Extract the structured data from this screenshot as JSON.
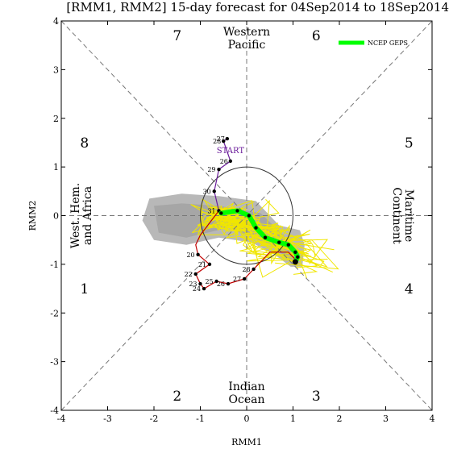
{
  "chart_data": {
    "type": "line",
    "title": "[RMM1, RMM2] 15-day forecast for 04Sep2014 to 18Sep2014",
    "xlabel": "RMM1",
    "ylabel": "RMM2",
    "xlim": [
      -4,
      4
    ],
    "ylim": [
      -4,
      4
    ],
    "xticks": [
      "-4",
      "-3",
      "-2",
      "-1",
      "0",
      "1",
      "2",
      "3",
      "4"
    ],
    "yticks": [
      "-4",
      "-3",
      "-2",
      "-1",
      "0",
      "1",
      "2",
      "3",
      "4"
    ],
    "grid": false,
    "legend": {
      "position": "top-right",
      "entries": [
        {
          "name": "NCEP GEPS",
          "color": "#00ff00"
        }
      ]
    },
    "phase_numbers": [
      "1",
      "2",
      "3",
      "4",
      "5",
      "6",
      "7",
      "8"
    ],
    "region_labels": {
      "top": [
        "Western",
        "Pacific"
      ],
      "bottom": [
        "Indian",
        "Ocean"
      ],
      "left": [
        "West. Hem.",
        "and Africa"
      ],
      "right": [
        "Maritime",
        "Continent"
      ]
    },
    "start_label": "START",
    "unit_circle_radius": 1,
    "observed": {
      "color": "#c00000",
      "recent_color": "#6a1b9a",
      "points": [
        {
          "label": "20",
          "x": -1.05,
          "y": -0.8
        },
        {
          "label": "21",
          "x": -0.8,
          "y": -1.0
        },
        {
          "label": "22",
          "x": -1.1,
          "y": -1.2
        },
        {
          "label": "23",
          "x": -1.0,
          "y": -1.4
        },
        {
          "label": "24",
          "x": -0.92,
          "y": -1.5
        },
        {
          "label": "25",
          "x": -0.65,
          "y": -1.35
        },
        {
          "label": "26",
          "x": -0.4,
          "y": -1.4
        },
        {
          "label": "27",
          "x": -0.05,
          "y": -1.3
        },
        {
          "label": "28",
          "x": 0.15,
          "y": -1.1
        },
        {
          "label": "29",
          "x": -0.6,
          "y": 0.95
        },
        {
          "label": "30",
          "x": -0.7,
          "y": 0.5
        },
        {
          "label": "31",
          "x": -0.6,
          "y": 0.1
        }
      ]
    },
    "start_points": [
      {
        "label": "27",
        "x": -0.42,
        "y": 1.58
      },
      {
        "label": "28",
        "x": -0.5,
        "y": 1.53
      },
      {
        "label": "26",
        "x": -0.35,
        "y": 1.12
      }
    ],
    "ensemble_mean": {
      "name": "NCEP GEPS",
      "color": "#00ff00",
      "x": [
        -0.55,
        -0.2,
        0.05,
        0.2,
        0.4,
        0.7,
        0.9,
        1.05,
        1.1,
        1.05
      ],
      "y": [
        0.05,
        0.1,
        0.0,
        -0.25,
        -0.45,
        -0.55,
        -0.6,
        -0.75,
        -0.85,
        -0.95
      ]
    },
    "ensemble_members_color": "#f0e600",
    "spread_color": "#b8b8b8"
  }
}
